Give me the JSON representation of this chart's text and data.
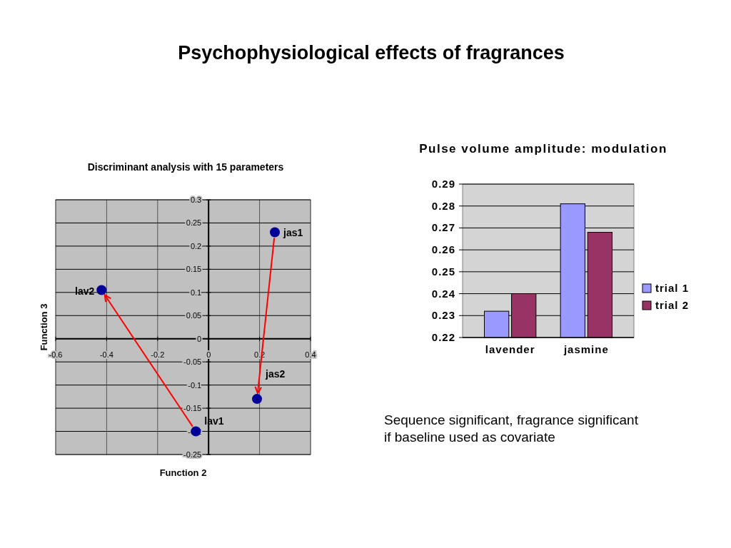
{
  "chart_data": [
    {
      "type": "scatter",
      "title": "Psychophysiological effects of fragrances",
      "subtitle": "Discriminant analysis with 15 parameters",
      "xlabel": "Function 2",
      "ylabel": "Function 3",
      "x": [
        -0.05,
        -0.42,
        0.26,
        0.19
      ],
      "series": [
        {
          "color": "#000099",
          "values": [
            -0.2,
            0.105,
            0.23,
            -0.13
          ]
        }
      ],
      "annotations": [
        {
          "text": "lav1",
          "x": -0.05,
          "y": -0.2
        },
        {
          "text": "lav2",
          "x": -0.42,
          "y": 0.105
        },
        {
          "text": "jas1",
          "x": 0.26,
          "y": 0.23
        },
        {
          "text": "jas2",
          "x": 0.19,
          "y": -0.13
        }
      ],
      "xlim": [
        -0.6,
        0.4
      ],
      "xticks": [
        -0.6,
        -0.4,
        -0.2,
        0,
        0.2,
        0.4
      ],
      "ylim": [
        -0.25,
        0.3
      ],
      "yticks": [
        -0.25,
        -0.2,
        -0.15,
        -0.1,
        -0.05,
        0,
        0.05,
        0.1,
        0.15,
        0.2,
        0.25,
        0.3
      ],
      "grid": true,
      "marker": "circle"
    },
    {
      "type": "bar",
      "title": "Pulse volume amplitude: modulation",
      "categories": [
        "lavender",
        "jasmine"
      ],
      "series": [
        {
          "name": "trial 1",
          "color": "#9999ff",
          "values": [
            0.232,
            0.281
          ]
        },
        {
          "name": "trial 2",
          "color": "#993366",
          "values": [
            0.24,
            0.268
          ]
        }
      ],
      "ylim": [
        0.22,
        0.29
      ],
      "yticks": [
        0.22,
        0.23,
        0.24,
        0.25,
        0.26,
        0.27,
        0.28,
        0.29
      ],
      "grid": "y",
      "legend": "right",
      "annotations": [
        "Sequence significant, fragrance significant if baseline used as covariate"
      ]
    }
  ]
}
